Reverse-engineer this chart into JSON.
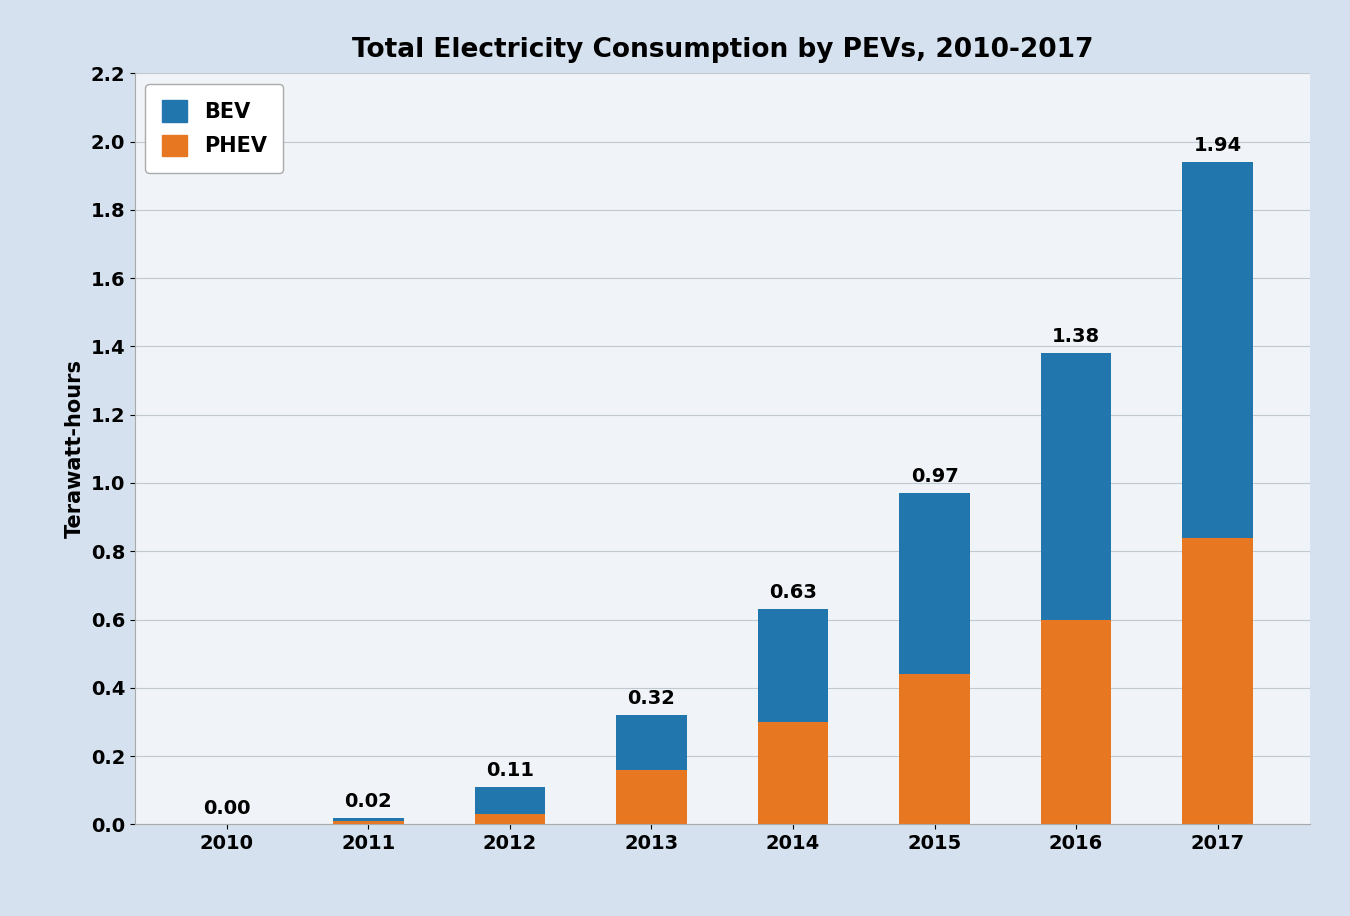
{
  "title": "Total Electricity Consumption by PEVs, 2010-2017",
  "ylabel": "Terawatt-hours",
  "years": [
    "2010",
    "2011",
    "2012",
    "2013",
    "2014",
    "2015",
    "2016",
    "2017"
  ],
  "bev_values": [
    0.0,
    0.01,
    0.08,
    0.16,
    0.33,
    0.53,
    0.78,
    1.1
  ],
  "phev_values": [
    0.0,
    0.01,
    0.03,
    0.16,
    0.3,
    0.44,
    0.6,
    0.84
  ],
  "totals": [
    0.0,
    0.02,
    0.11,
    0.32,
    0.63,
    0.97,
    1.38,
    1.94
  ],
  "bev_color": "#2176AE",
  "phev_color": "#E87722",
  "ylim": [
    0,
    2.2
  ],
  "yticks": [
    0.0,
    0.2,
    0.4,
    0.6,
    0.8,
    1.0,
    1.2,
    1.4,
    1.6,
    1.8,
    2.0,
    2.2
  ],
  "background_color": "#d5e1ef",
  "plot_background_color": "#f0f4f8",
  "title_fontsize": 19,
  "label_fontsize": 15,
  "tick_fontsize": 14,
  "annotation_fontsize": 14,
  "legend_fontsize": 15,
  "bar_width": 0.5
}
